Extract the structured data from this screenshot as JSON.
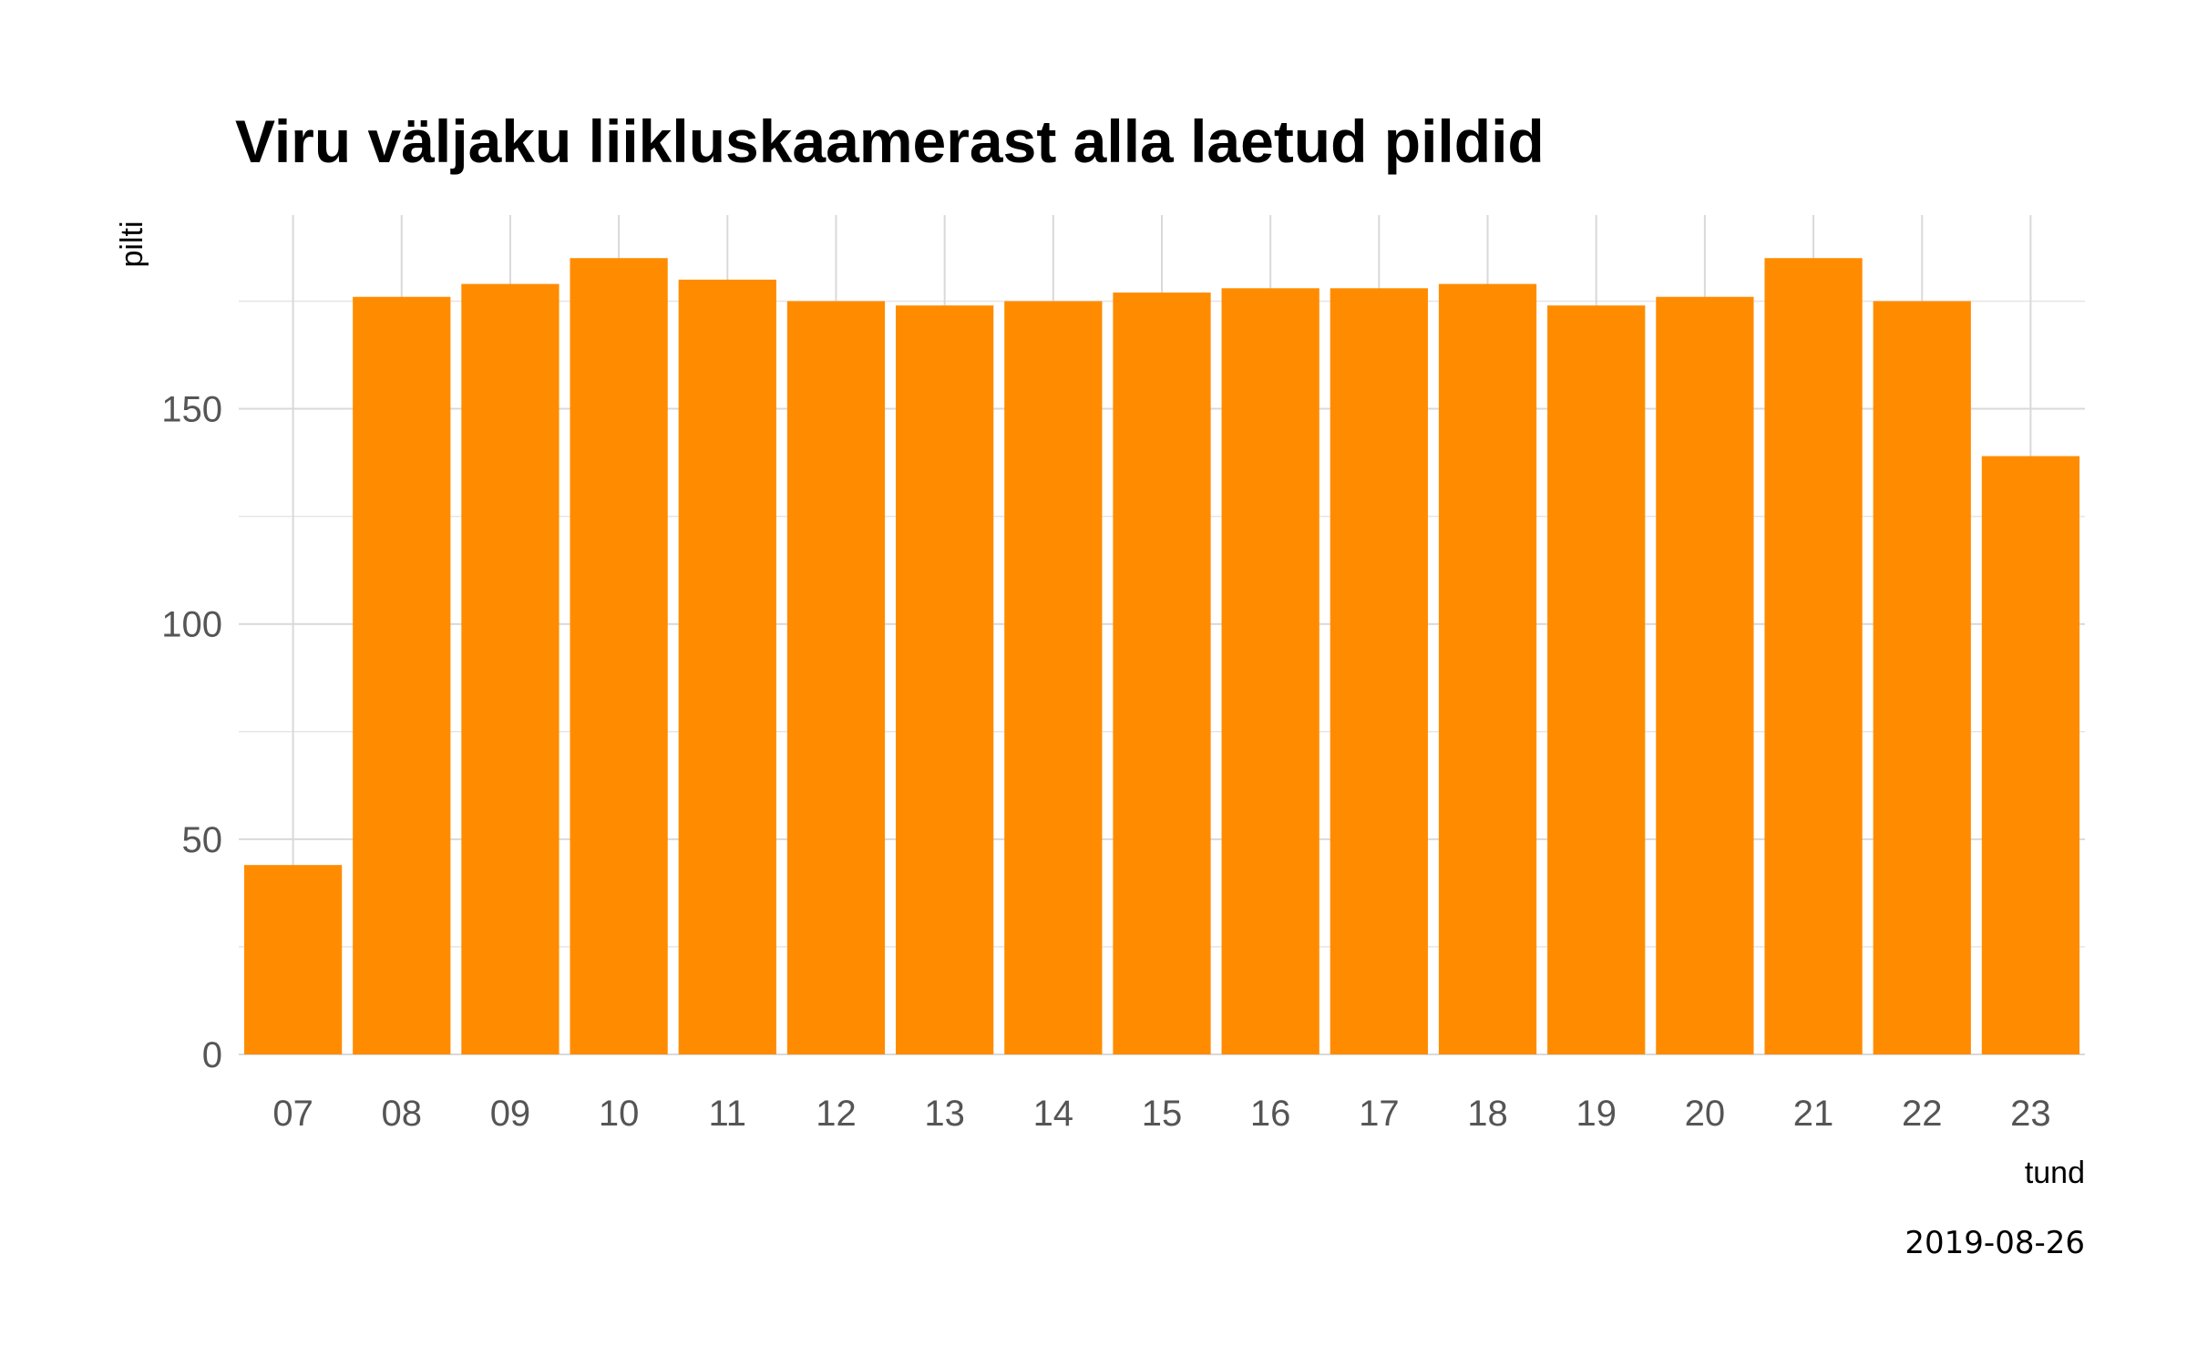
{
  "chart_data": {
    "type": "bar",
    "title": "Viru väljaku liikluskaamerast alla laetud pildid",
    "xlabel": "tund",
    "ylabel": "pilti",
    "caption": "2019-08-26",
    "categories": [
      "07",
      "08",
      "09",
      "10",
      "11",
      "12",
      "13",
      "14",
      "15",
      "16",
      "17",
      "18",
      "19",
      "20",
      "21",
      "22",
      "23"
    ],
    "values": [
      44,
      176,
      179,
      185,
      180,
      175,
      174,
      175,
      177,
      178,
      178,
      179,
      174,
      176,
      185,
      175,
      139
    ],
    "ylim": [
      0,
      195
    ],
    "yticks": [
      0,
      50,
      100,
      150
    ],
    "grid": true,
    "bar_color": "#FF8C00"
  }
}
